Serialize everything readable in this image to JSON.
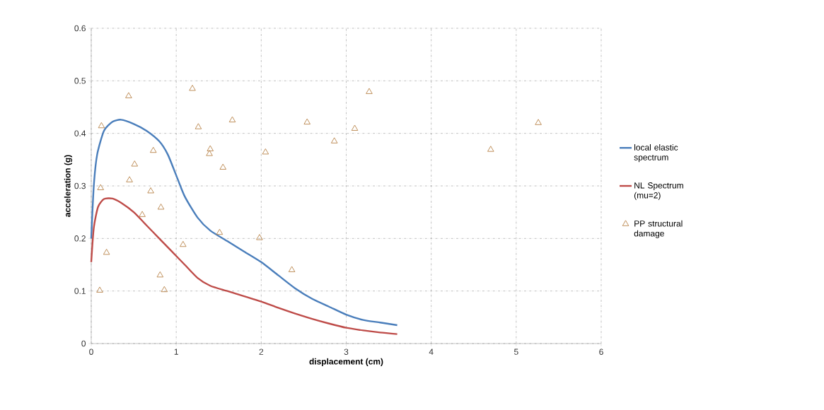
{
  "chart_data": {
    "type": "line",
    "xlabel": "displacement (cm)",
    "ylabel": "acceleration (g)",
    "xlim": [
      0,
      6
    ],
    "xticks": [
      0,
      1,
      2,
      3,
      4,
      5,
      6
    ],
    "ylim": [
      0,
      0.6
    ],
    "yticks": [
      0,
      0.1,
      0.2,
      0.3,
      0.4,
      0.5,
      0.6
    ],
    "grid": true,
    "legend": "right",
    "series": [
      {
        "name": "local elastic spectrum",
        "color": "#4a7ebb",
        "marker": "none",
        "x": [
          0,
          0.03,
          0.07,
          0.15,
          0.25,
          0.35,
          0.5,
          0.65,
          0.8,
          0.9,
          1.0,
          1.1,
          1.25,
          1.4,
          1.6,
          1.8,
          2.0,
          2.2,
          2.4,
          2.6,
          2.8,
          3.0,
          3.2,
          3.4,
          3.6
        ],
        "values": [
          0.2,
          0.3,
          0.36,
          0.405,
          0.422,
          0.426,
          0.418,
          0.405,
          0.385,
          0.36,
          0.32,
          0.28,
          0.24,
          0.215,
          0.195,
          0.175,
          0.155,
          0.13,
          0.105,
          0.085,
          0.07,
          0.055,
          0.045,
          0.04,
          0.035
        ]
      },
      {
        "name": "NL Spectrum (mu=2)",
        "color": "#be4b48",
        "marker": "none",
        "x": [
          0,
          0.03,
          0.08,
          0.15,
          0.25,
          0.35,
          0.5,
          0.65,
          0.8,
          0.95,
          1.1,
          1.25,
          1.4,
          1.6,
          1.8,
          2.0,
          2.2,
          2.4,
          2.6,
          2.8,
          3.0,
          3.2,
          3.4,
          3.6
        ],
        "values": [
          0.155,
          0.22,
          0.26,
          0.275,
          0.276,
          0.268,
          0.25,
          0.225,
          0.2,
          0.175,
          0.15,
          0.125,
          0.11,
          0.1,
          0.09,
          0.08,
          0.068,
          0.057,
          0.047,
          0.038,
          0.03,
          0.025,
          0.021,
          0.018
        ]
      },
      {
        "name": "PP structural damage",
        "color": "#b8844a",
        "type": "scatter",
        "marker": "triangle",
        "x": [
          0.44,
          0.12,
          1.19,
          1.26,
          1.66,
          0.73,
          1.4,
          1.39,
          2.05,
          0.51,
          1.55,
          0.45,
          0.11,
          0.7,
          0.82,
          0.6,
          1.51,
          1.98,
          1.08,
          0.18,
          0.81,
          0.86,
          0.1,
          3.27,
          2.54,
          3.1,
          2.86,
          2.36,
          5.26,
          4.7
        ],
        "values": [
          0.471,
          0.414,
          0.485,
          0.412,
          0.425,
          0.367,
          0.37,
          0.361,
          0.364,
          0.341,
          0.335,
          0.311,
          0.296,
          0.29,
          0.259,
          0.245,
          0.211,
          0.201,
          0.188,
          0.173,
          0.13,
          0.102,
          0.101,
          0.479,
          0.421,
          0.409,
          0.385,
          0.14,
          0.42,
          0.369
        ]
      }
    ]
  }
}
